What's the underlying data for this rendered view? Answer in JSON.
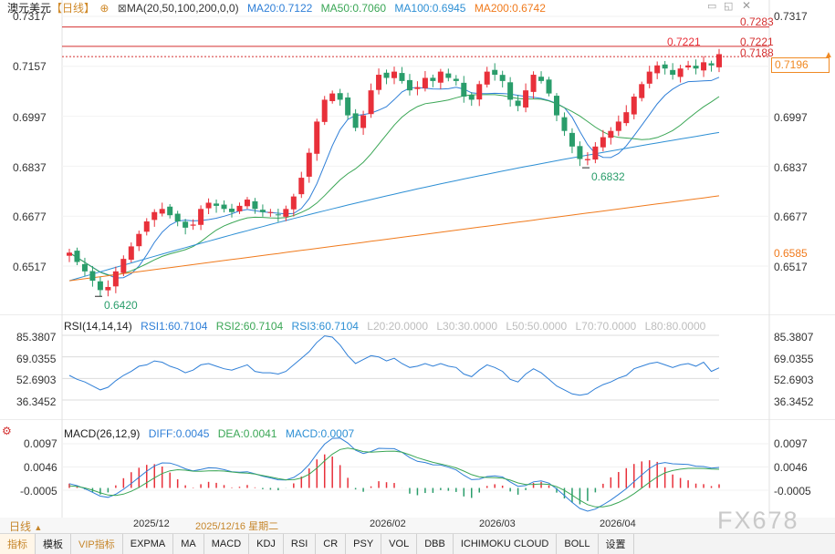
{
  "main_header": {
    "symbol": "澳元美元",
    "period": "【日线】",
    "ma_label": "MA(20,50,100,200,0,0)",
    "ma20": "MA20:0.7122",
    "ma50": "MA50:0.7060",
    "ma100": "MA100:0.6945",
    "ma200": "MA200:0.6742"
  },
  "rsi_header": {
    "label": "RSI(14,14,14)",
    "rsi1": "RSI1:60.7104",
    "rsi2": "RSI2:60.7104",
    "rsi3": "RSI3:60.7104",
    "l20": "L20:20.0000",
    "l30": "L30:30.0000",
    "l50": "L50:50.0000",
    "l70": "L70:70.0000",
    "l80": "L80:80.0000"
  },
  "macd_header": {
    "label": "MACD(26,12,9)",
    "diff": "DIFF:0.0045",
    "dea": "DEA:0.0041",
    "macd": "MACD:0.0007"
  },
  "colors": {
    "up": "#e8303a",
    "down": "#2a9d6b",
    "ma20": "#2f7fd7",
    "ma50": "#3aa655",
    "ma100": "#2d8fd4",
    "ma200": "#f07a1c",
    "hline": "#d43030",
    "current_price": "#f08a24"
  },
  "main_axis": {
    "ticks": [
      "0.7317",
      "0.7157",
      "0.6997",
      "0.6837",
      "0.6677",
      "0.6517"
    ]
  },
  "rsi_axis": {
    "ticks": [
      "85.3807",
      "69.0355",
      "52.6903",
      "36.3452"
    ]
  },
  "macd_axis": {
    "ticks": [
      "0.0097",
      "0.0046",
      "-0.0005"
    ]
  },
  "price_levels": {
    "level_top": "0.7283",
    "level_high": "0.7221",
    "level_dotted": "0.7188",
    "current_price": "0.7196",
    "ma200_marker": "0.6585"
  },
  "annotations": {
    "high": "0.7221",
    "mid_low": "0.6832",
    "low": "0.6420"
  },
  "date_axis": {
    "labels": [
      "2025/12",
      "2025/12/16 星期二",
      "2026/02",
      "2026/03",
      "2026/04"
    ]
  },
  "bottom": {
    "period_label": "日线",
    "watermark": "FX678"
  },
  "tabs": [
    "指标",
    "模板",
    "VIP指标",
    "EXPMA",
    "MA",
    "MACD",
    "KDJ",
    "RSI",
    "CR",
    "PSY",
    "VOL",
    "DBB",
    "ICHIMOKU CLOUD",
    "BOLL",
    "设置"
  ],
  "chart_data": [
    {
      "type": "candlestick",
      "title": "澳元美元 日线",
      "ylim": [
        0.64,
        0.733
      ],
      "close_path": [
        0.656,
        0.653,
        0.65,
        0.647,
        0.644,
        0.645,
        0.65,
        0.654,
        0.658,
        0.662,
        0.666,
        0.669,
        0.67,
        0.668,
        0.666,
        0.664,
        0.665,
        0.67,
        0.672,
        0.671,
        0.67,
        0.669,
        0.671,
        0.673,
        0.67,
        0.669,
        0.669,
        0.668,
        0.67,
        0.674,
        0.68,
        0.688,
        0.698,
        0.705,
        0.707,
        0.705,
        0.7,
        0.696,
        0.7,
        0.708,
        0.713,
        0.712,
        0.714,
        0.711,
        0.708,
        0.709,
        0.712,
        0.711,
        0.714,
        0.712,
        0.711,
        0.706,
        0.705,
        0.71,
        0.714,
        0.713,
        0.711,
        0.705,
        0.703,
        0.708,
        0.713,
        0.711,
        0.707,
        0.7,
        0.695,
        0.69,
        0.686,
        0.686,
        0.69,
        0.693,
        0.695,
        0.698,
        0.701,
        0.706,
        0.71,
        0.714,
        0.716,
        0.715,
        0.713,
        0.715,
        0.716,
        0.715,
        0.717,
        0.716,
        0.7196
      ],
      "moving_averages": {
        "MA20": 0.7122,
        "MA50": 0.706,
        "MA100": 0.6945,
        "MA200": 0.6742
      },
      "horizontal_levels": [
        0.7283,
        0.7221,
        0.7188
      ],
      "annotated_high": 0.7221,
      "annotated_lows": [
        0.6832,
        0.642
      ],
      "current_price": 0.7196
    },
    {
      "type": "line",
      "title": "RSI(14,14,14)",
      "ylim": [
        30,
        90
      ],
      "series": [
        {
          "name": "RSI1",
          "last": 60.7104,
          "values": [
            55,
            52,
            50,
            47,
            44,
            46,
            51,
            55,
            58,
            62,
            63,
            66,
            65,
            62,
            60,
            57,
            59,
            63,
            64,
            62,
            60,
            59,
            61,
            63,
            58,
            57,
            57,
            56,
            58,
            63,
            68,
            73,
            80,
            85,
            84,
            78,
            70,
            64,
            67,
            70,
            69,
            66,
            68,
            64,
            61,
            62,
            64,
            62,
            64,
            62,
            61,
            56,
            54,
            59,
            63,
            61,
            58,
            52,
            50,
            56,
            60,
            57,
            52,
            47,
            44,
            41,
            40,
            41,
            45,
            48,
            50,
            53,
            55,
            60,
            62,
            64,
            65,
            63,
            61,
            63,
            64,
            62,
            65,
            58,
            60.7
          ]
        }
      ]
    },
    {
      "type": "line",
      "title": "MACD(26,12,9)",
      "ylim": [
        -0.0045,
        0.0115
      ],
      "series": [
        {
          "name": "DIFF",
          "last": 0.0045
        },
        {
          "name": "DEA",
          "last": 0.0041
        },
        {
          "name": "MACD",
          "last": 0.0007
        }
      ]
    }
  ]
}
